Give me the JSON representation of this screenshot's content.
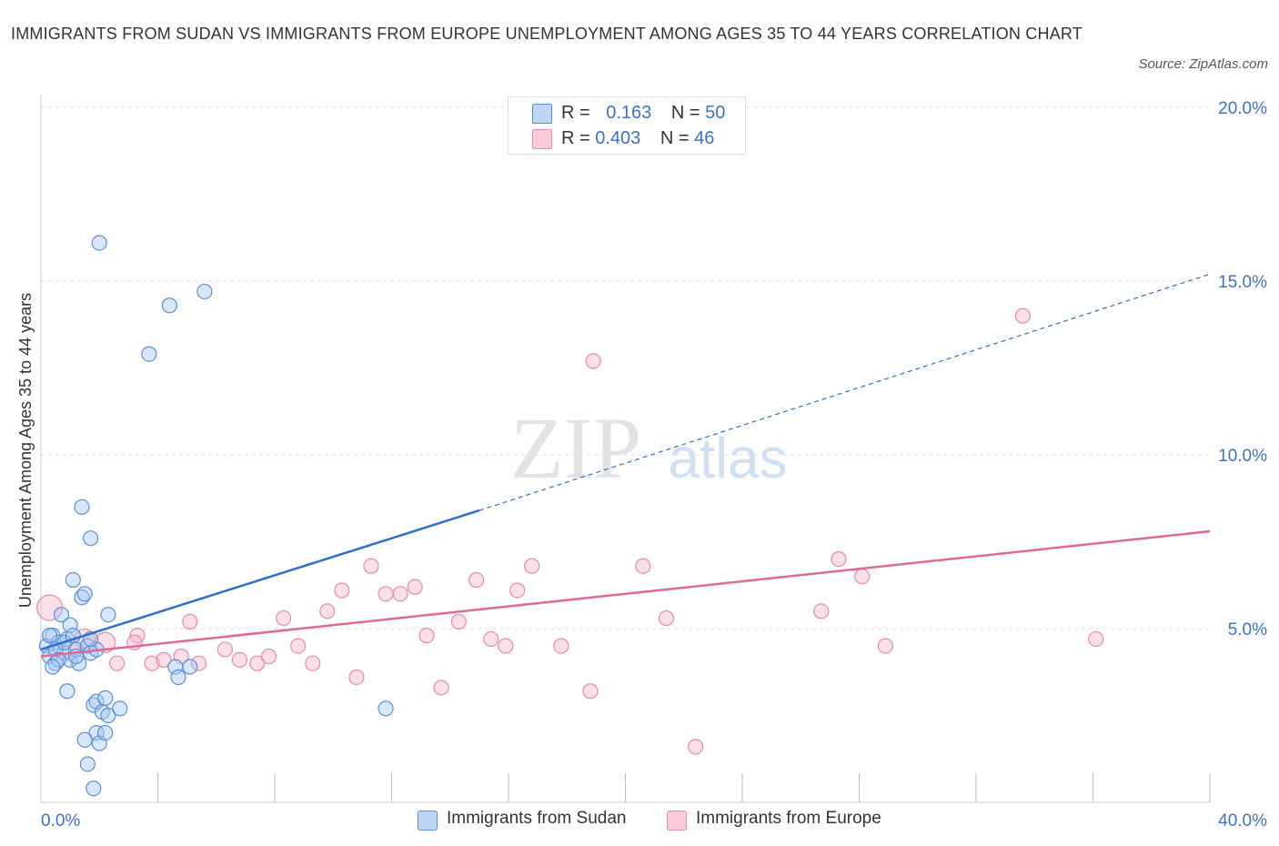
{
  "title": "IMMIGRANTS FROM SUDAN VS IMMIGRANTS FROM EUROPE UNEMPLOYMENT AMONG AGES 35 TO 44 YEARS CORRELATION CHART",
  "source": "Source: ZipAtlas.com",
  "watermark": {
    "zip": "ZIP",
    "atlas": "atlas"
  },
  "legend": {
    "r_label": "R =",
    "n_label": "N =",
    "sudan": {
      "r": "0.163",
      "n": "50"
    },
    "europe": {
      "r": "0.403",
      "n": "46"
    }
  },
  "colors": {
    "sudan_fill": "#a9c8f2",
    "sudan_stroke": "#5b90d8",
    "sudan_line": "#2e6fcc",
    "europe_fill": "#f6b8cc",
    "europe_stroke": "#e88aa9",
    "europe_line": "#e0679a",
    "axis_text": "#3a74c4",
    "grid": "#dddddd"
  },
  "chart_data": {
    "type": "scatter",
    "title": "IMMIGRANTS FROM SUDAN VS IMMIGRANTS FROM EUROPE UNEMPLOYMENT AMONG AGES 35 TO 44 YEARS CORRELATION CHART",
    "xlabel": "",
    "ylabel": "Unemployment Among Ages 35 to 44 years",
    "xlim": [
      0,
      40
    ],
    "ylim": [
      0,
      20
    ],
    "x_tick_labels": [
      "0.0%",
      "40.0%"
    ],
    "y_ticks": [
      5,
      10,
      15,
      20
    ],
    "y_tick_labels": [
      "5.0%",
      "10.0%",
      "15.0%",
      "20.0%"
    ],
    "legend_position": "bottom",
    "series": [
      {
        "name": "Immigrants from Sudan",
        "points": [
          [
            0.2,
            4.5
          ],
          [
            0.3,
            4.2
          ],
          [
            0.4,
            4.8
          ],
          [
            0.5,
            4.0
          ],
          [
            0.6,
            4.6
          ],
          [
            0.7,
            5.4
          ],
          [
            0.8,
            4.3
          ],
          [
            0.9,
            4.7
          ],
          [
            1.0,
            5.1
          ],
          [
            1.0,
            4.1
          ],
          [
            0.9,
            3.2
          ],
          [
            1.1,
            6.4
          ],
          [
            1.2,
            4.4
          ],
          [
            1.3,
            4.0
          ],
          [
            1.4,
            5.9
          ],
          [
            1.5,
            6.0
          ],
          [
            1.6,
            4.5
          ],
          [
            1.7,
            4.3
          ],
          [
            1.4,
            8.5
          ],
          [
            1.7,
            7.6
          ],
          [
            2.0,
            16.1
          ],
          [
            2.3,
            5.4
          ],
          [
            1.8,
            2.8
          ],
          [
            1.9,
            2.0
          ],
          [
            2.0,
            1.7
          ],
          [
            2.2,
            2.0
          ],
          [
            1.9,
            2.9
          ],
          [
            2.1,
            2.6
          ],
          [
            2.2,
            3.0
          ],
          [
            2.3,
            2.5
          ],
          [
            1.5,
            1.8
          ],
          [
            1.6,
            1.1
          ],
          [
            1.8,
            0.4
          ],
          [
            2.7,
            2.7
          ],
          [
            4.4,
            14.3
          ],
          [
            3.7,
            12.9
          ],
          [
            5.6,
            14.7
          ],
          [
            4.6,
            3.9
          ],
          [
            4.7,
            3.6
          ],
          [
            5.1,
            3.9
          ],
          [
            11.8,
            2.7
          ],
          [
            1.2,
            4.2
          ],
          [
            0.5,
            4.4
          ],
          [
            0.6,
            4.1
          ],
          [
            0.8,
            4.6
          ],
          [
            1.1,
            4.8
          ],
          [
            1.9,
            4.4
          ],
          [
            0.3,
            4.8
          ],
          [
            0.4,
            3.9
          ],
          [
            1.7,
            4.7
          ]
        ],
        "trend": {
          "x0": 0,
          "y0": 4.4,
          "x_solid_end": 15,
          "y_solid_end": 8.4,
          "x1": 40,
          "y1": 15.2
        }
      },
      {
        "name": "Immigrants from Europe",
        "points": [
          [
            0.3,
            5.6
          ],
          [
            1.0,
            4.4
          ],
          [
            1.5,
            4.7
          ],
          [
            2.2,
            4.6
          ],
          [
            2.6,
            4.0
          ],
          [
            3.3,
            4.8
          ],
          [
            3.8,
            4.0
          ],
          [
            4.2,
            4.1
          ],
          [
            4.8,
            4.2
          ],
          [
            5.1,
            5.2
          ],
          [
            5.4,
            4.0
          ],
          [
            6.3,
            4.4
          ],
          [
            6.8,
            4.1
          ],
          [
            7.4,
            4.0
          ],
          [
            7.8,
            4.2
          ],
          [
            8.3,
            5.3
          ],
          [
            8.8,
            4.5
          ],
          [
            9.3,
            4.0
          ],
          [
            9.8,
            5.5
          ],
          [
            10.3,
            6.1
          ],
          [
            10.8,
            3.6
          ],
          [
            11.3,
            6.8
          ],
          [
            11.8,
            6.0
          ],
          [
            12.3,
            6.0
          ],
          [
            12.8,
            6.2
          ],
          [
            13.2,
            4.8
          ],
          [
            13.7,
            3.3
          ],
          [
            14.3,
            5.2
          ],
          [
            14.9,
            6.4
          ],
          [
            15.4,
            4.7
          ],
          [
            15.9,
            4.5
          ],
          [
            16.3,
            6.1
          ],
          [
            16.8,
            6.8
          ],
          [
            17.8,
            4.5
          ],
          [
            18.8,
            3.2
          ],
          [
            18.9,
            12.7
          ],
          [
            20.6,
            6.8
          ],
          [
            21.4,
            5.3
          ],
          [
            22.4,
            1.6
          ],
          [
            26.7,
            5.5
          ],
          [
            27.3,
            7.0
          ],
          [
            28.1,
            6.5
          ],
          [
            28.9,
            4.5
          ],
          [
            33.6,
            14.0
          ],
          [
            36.1,
            4.7
          ],
          [
            3.2,
            4.6
          ]
        ],
        "trend": {
          "x0": 0,
          "y0": 4.2,
          "x1": 40,
          "y1": 7.8
        }
      }
    ]
  }
}
